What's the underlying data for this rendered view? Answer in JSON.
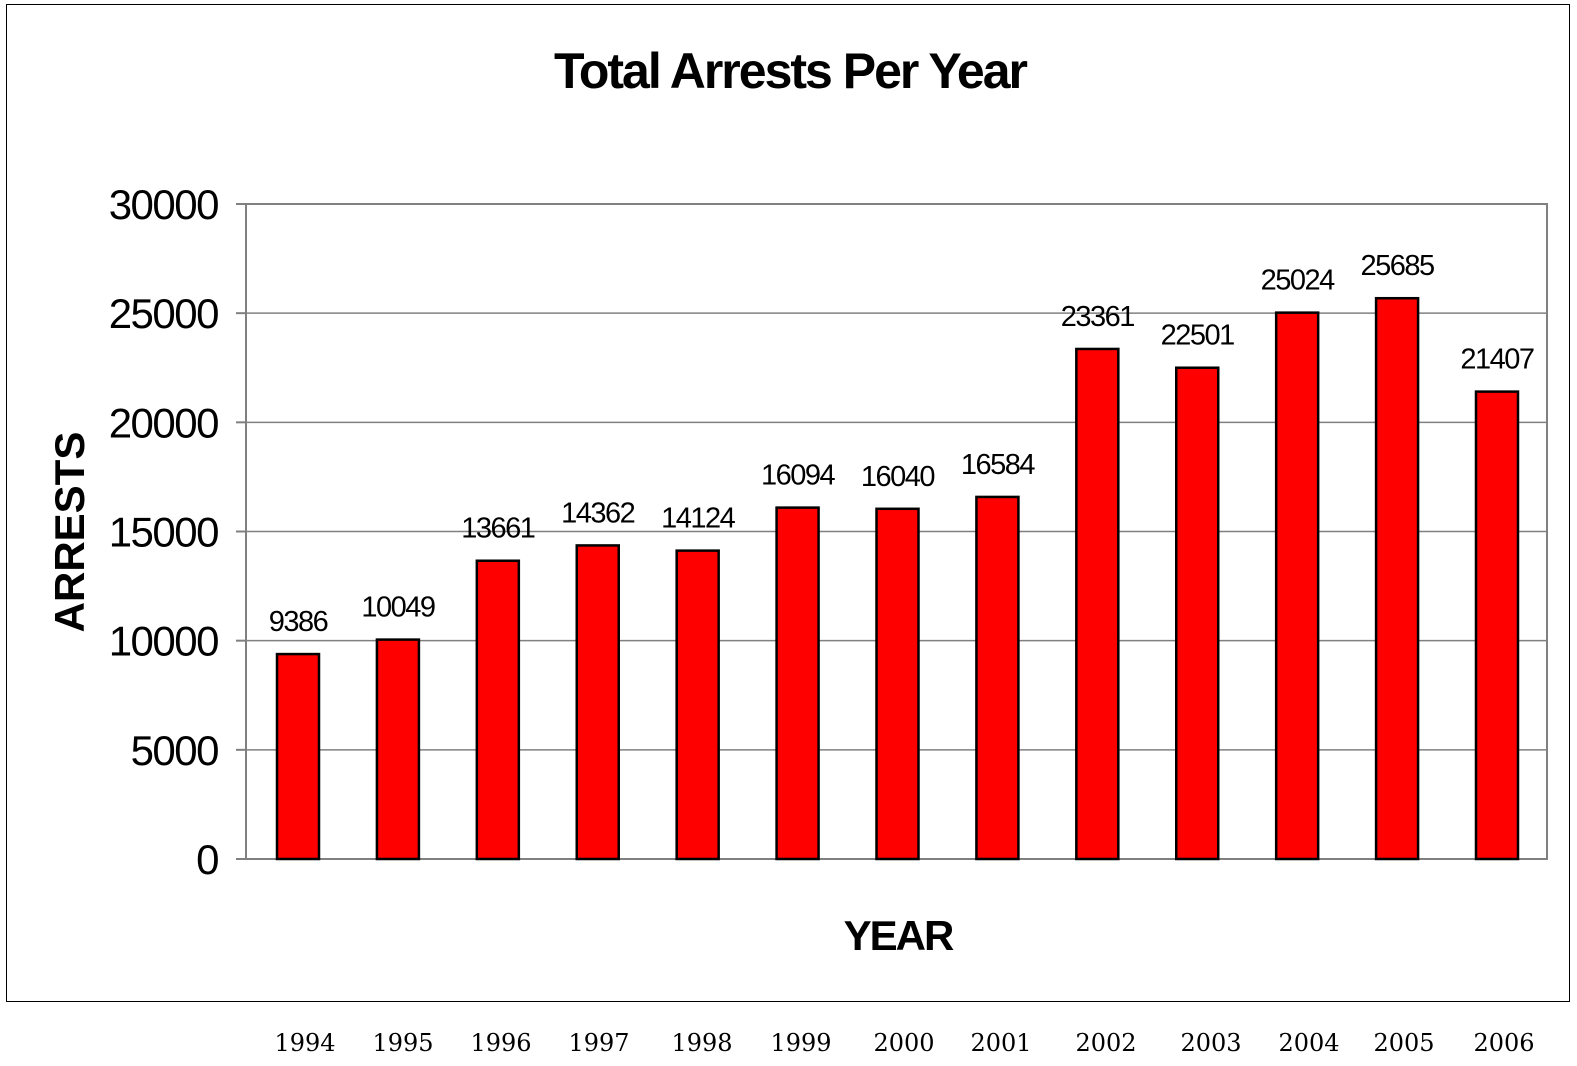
{
  "chart_data": {
    "type": "bar",
    "title": "Total Arrests Per Year",
    "xlabel": "YEAR",
    "ylabel": "ARRESTS",
    "ylim": [
      0,
      30000
    ],
    "yticks": [
      0,
      5000,
      10000,
      15000,
      20000,
      25000,
      30000
    ],
    "grid": true,
    "legend": "none",
    "categories": [
      "1994",
      "1995",
      "1996",
      "1997",
      "1998",
      "1999",
      "2000",
      "2001",
      "2002",
      "2003",
      "2004",
      "2005",
      "2006"
    ],
    "values": [
      9386,
      10049,
      13661,
      14362,
      14124,
      16094,
      16040,
      16584,
      23361,
      22501,
      25024,
      25685,
      21407
    ],
    "bar_color": "#ff0000",
    "bar_edge_color": "#000000",
    "gridline_color": "#808080"
  },
  "outside_year_labels": [
    "1994",
    "1995",
    "1996",
    "1997",
    "1998",
    "1999",
    "2000",
    "2001",
    "2002",
    "2003",
    "2004",
    "2005",
    "2006"
  ]
}
